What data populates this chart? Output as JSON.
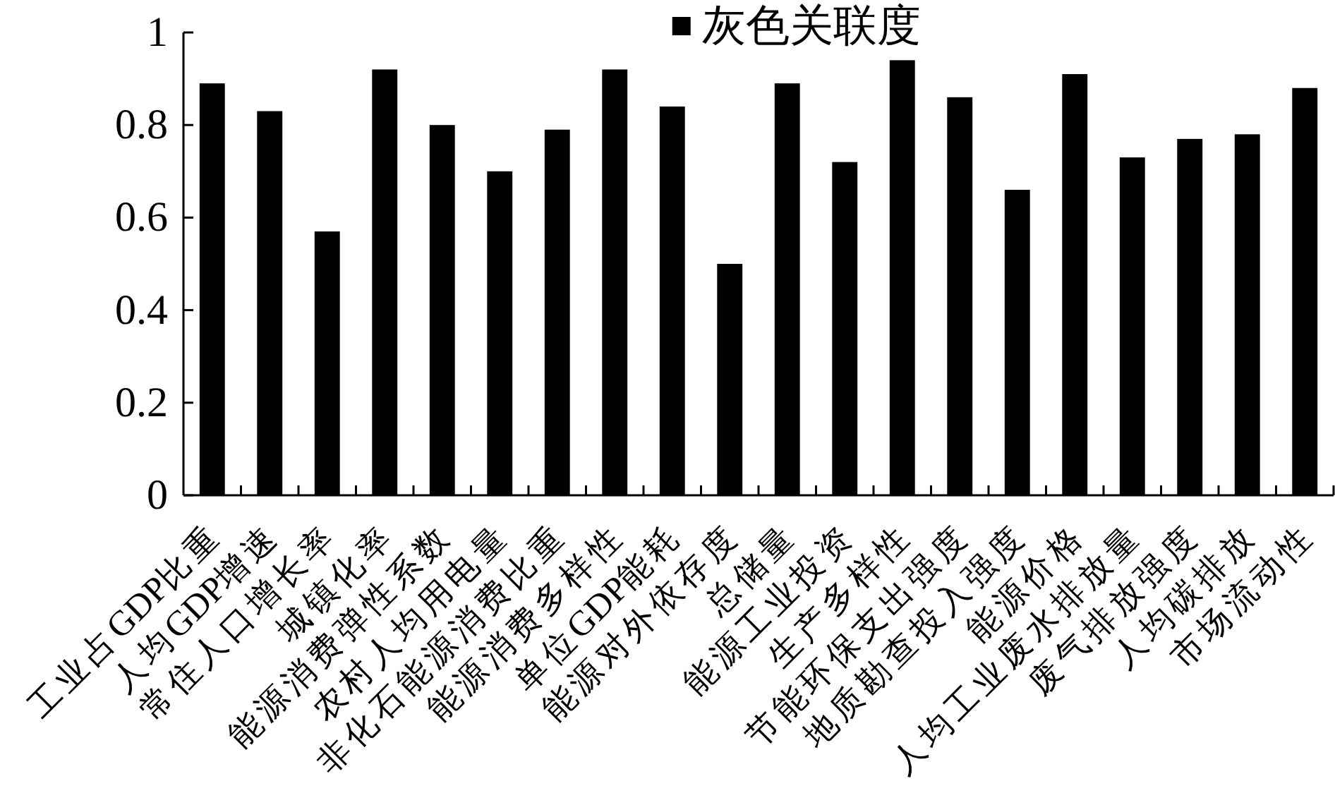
{
  "chart_data": {
    "type": "bar",
    "categories": [
      "工业占GDP比重",
      "人均GDP增速",
      "常住人口增长率",
      "城镇化率",
      "能源消费弹性系数",
      "农村人均用电量",
      "非化石能源消费比重",
      "能源消费多样性",
      "单位GDP能耗",
      "能源对外依存度",
      "总储量",
      "能源工业投资",
      "生产多样性",
      "节能环保支出强度",
      "地质勘查投入强度",
      "能源价格",
      "人均工业废水排放量",
      "废气排放强度",
      "人均碳排放",
      "市场流动性"
    ],
    "series": [
      {
        "name": "灰色关联度",
        "color": "#000000",
        "values": [
          0.89,
          0.83,
          0.57,
          0.92,
          0.8,
          0.7,
          0.79,
          0.92,
          0.84,
          0.5,
          0.89,
          0.72,
          0.94,
          0.86,
          0.66,
          0.91,
          0.73,
          0.77,
          0.78,
          0.88
        ]
      }
    ],
    "ylim": [
      0,
      1
    ],
    "yticks": [
      0,
      0.2,
      0.4,
      0.6,
      0.8,
      1
    ],
    "legend": "top"
  }
}
